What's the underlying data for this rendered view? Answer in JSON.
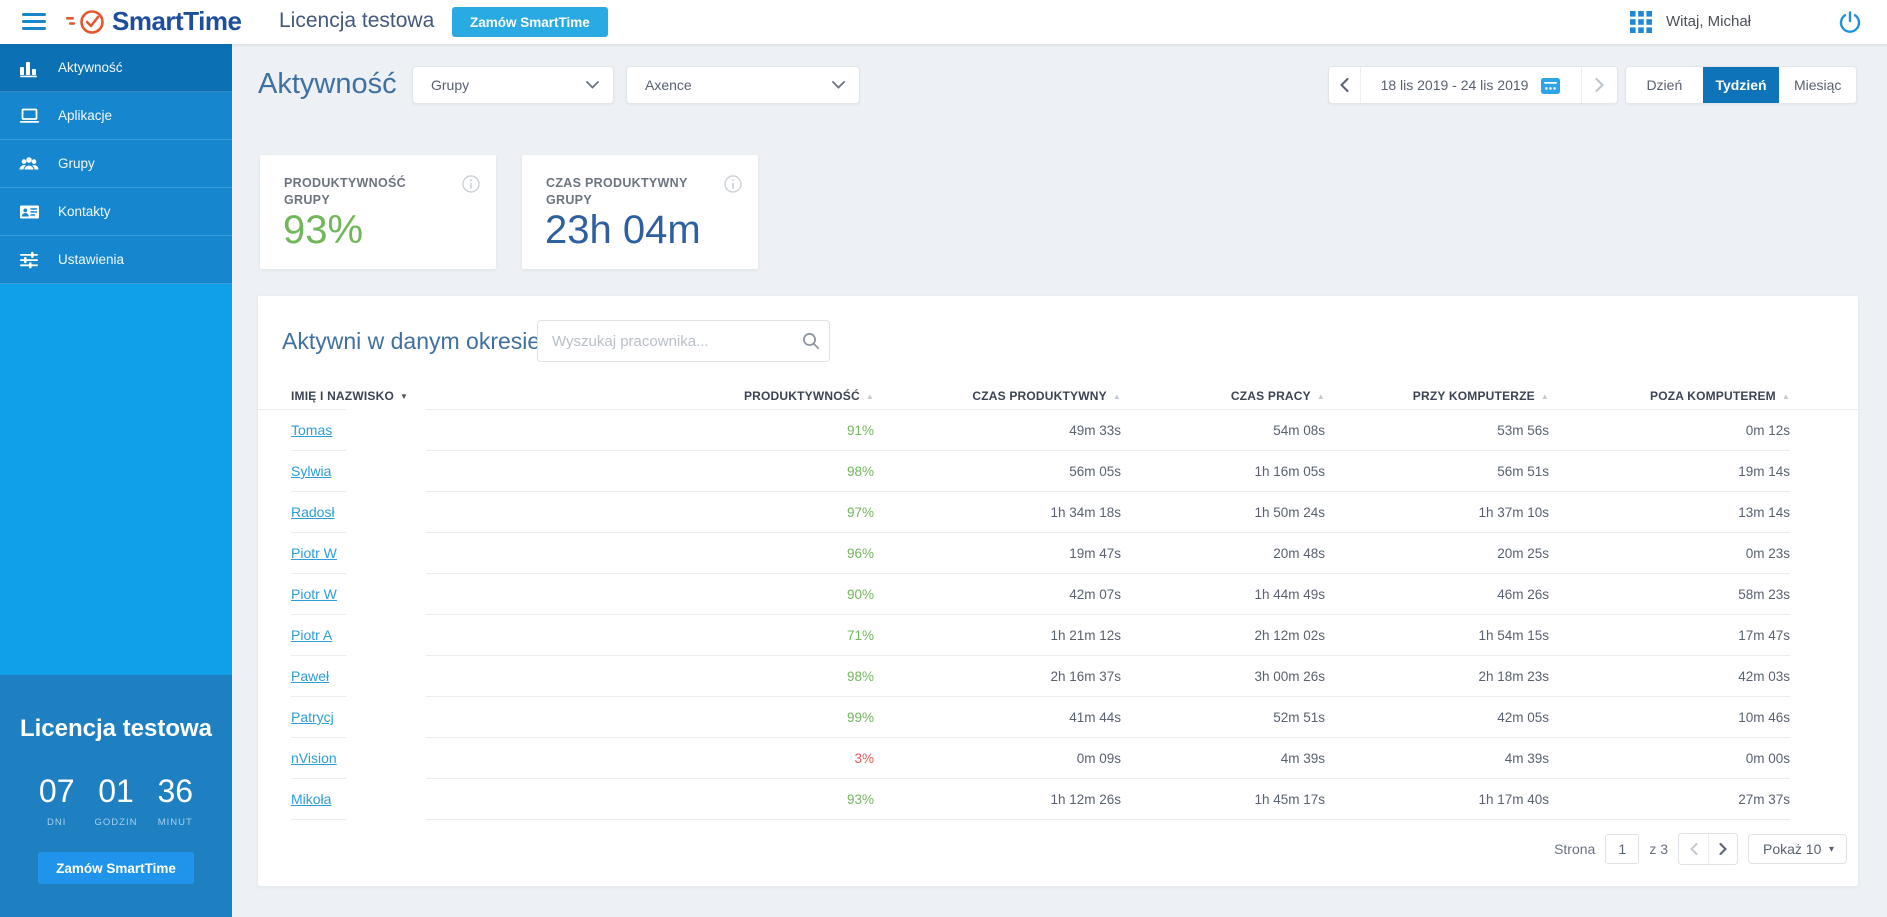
{
  "topbar": {
    "brand": "SmartTime",
    "license_label": "Licencja testowa",
    "order_button": "Zamów SmartTime",
    "greeting": "Witaj, Michał"
  },
  "sidebar": {
    "items": [
      {
        "label": "Aktywność",
        "active": true
      },
      {
        "label": "Aplikacje",
        "active": false
      },
      {
        "label": "Grupy",
        "active": false
      },
      {
        "label": "Kontakty",
        "active": false
      },
      {
        "label": "Ustawienia",
        "active": false
      }
    ],
    "license": {
      "title": "Licencja testowa",
      "countdown": [
        {
          "value": "07",
          "unit": "DNI"
        },
        {
          "value": "01",
          "unit": "GODZIN"
        },
        {
          "value": "36",
          "unit": "MINUT"
        }
      ],
      "order_button": "Zamów SmartTime"
    }
  },
  "header": {
    "title": "Aktywność",
    "group_select": "Grupy",
    "value_select": "Axence",
    "date_range": "18 lis 2019 - 24 lis 2019",
    "period_tabs": [
      {
        "label": "Dzień",
        "active": false
      },
      {
        "label": "Tydzień",
        "active": true
      },
      {
        "label": "Miesiąc",
        "active": false
      }
    ]
  },
  "cards": [
    {
      "label": "PRODUKTYWNOŚĆ GRUPY",
      "value": "93%",
      "color": "#72b65b"
    },
    {
      "label": "CZAS PRODUKTYWNY GRUPY",
      "value": "23h 04m",
      "color": "#2e5f9f"
    }
  ],
  "table": {
    "section_title": "Aktywni w danym okresie",
    "search_placeholder": "Wyszukaj pracownika...",
    "columns": [
      {
        "label": "IMIĘ I NAZWISKO",
        "sort": "desc-active"
      },
      {
        "label": "PRODUKTYWNOŚĆ",
        "sort": "asc-inactive"
      },
      {
        "label": "CZAS PRODUKTYWNY",
        "sort": "asc-inactive"
      },
      {
        "label": "CZAS PRACY",
        "sort": "asc-inactive"
      },
      {
        "label": "PRZY KOMPUTERZE",
        "sort": "asc-inactive"
      },
      {
        "label": "POZA KOMPUTEREM",
        "sort": "asc-inactive"
      }
    ],
    "rows": [
      {
        "name": "Tomas",
        "productivity": "91%",
        "productive_time": "49m 33s",
        "work_time": "54m 08s",
        "at_computer": "53m 56s",
        "away": "0m 12s",
        "low": false
      },
      {
        "name": "Sylwia",
        "productivity": "98%",
        "productive_time": "56m 05s",
        "work_time": "1h 16m 05s",
        "at_computer": "56m 51s",
        "away": "19m 14s",
        "low": false
      },
      {
        "name": "Radosł",
        "productivity": "97%",
        "productive_time": "1h 34m 18s",
        "work_time": "1h 50m 24s",
        "at_computer": "1h 37m 10s",
        "away": "13m 14s",
        "low": false
      },
      {
        "name": "Piotr W",
        "productivity": "96%",
        "productive_time": "19m 47s",
        "work_time": "20m 48s",
        "at_computer": "20m 25s",
        "away": "0m 23s",
        "low": false
      },
      {
        "name": "Piotr W",
        "productivity": "90%",
        "productive_time": "42m 07s",
        "work_time": "1h 44m 49s",
        "at_computer": "46m 26s",
        "away": "58m 23s",
        "low": false
      },
      {
        "name": "Piotr A",
        "productivity": "71%",
        "productive_time": "1h 21m 12s",
        "work_time": "2h 12m 02s",
        "at_computer": "1h 54m 15s",
        "away": "17m 47s",
        "low": false
      },
      {
        "name": "Paweł",
        "productivity": "98%",
        "productive_time": "2h 16m 37s",
        "work_time": "3h 00m 26s",
        "at_computer": "2h 18m 23s",
        "away": "42m 03s",
        "low": false
      },
      {
        "name": "Patrycj",
        "productivity": "99%",
        "productive_time": "41m 44s",
        "work_time": "52m 51s",
        "at_computer": "42m 05s",
        "away": "10m 46s",
        "low": false
      },
      {
        "name": "nVision",
        "productivity": "3%",
        "productive_time": "0m 09s",
        "work_time": "4m 39s",
        "at_computer": "4m 39s",
        "away": "0m 00s",
        "low": true
      },
      {
        "name": "Mikoła",
        "productivity": "93%",
        "productive_time": "1h 12m 26s",
        "work_time": "1h 45m 17s",
        "at_computer": "1h 17m 40s",
        "away": "27m 37s",
        "low": false
      }
    ],
    "pagination": {
      "page_label": "Strona",
      "page": "1",
      "of_label": "z 3",
      "page_size_label": "Pokaż 10"
    }
  },
  "colors": {
    "accent_blue": "#2aaae2",
    "sidebar_blue": "#10a0e9",
    "active_blue": "#0e73b9",
    "green": "#72b65b",
    "red": "#dd5b57",
    "value_blue": "#2e5f9f",
    "link_blue": "#2d9ed6"
  }
}
